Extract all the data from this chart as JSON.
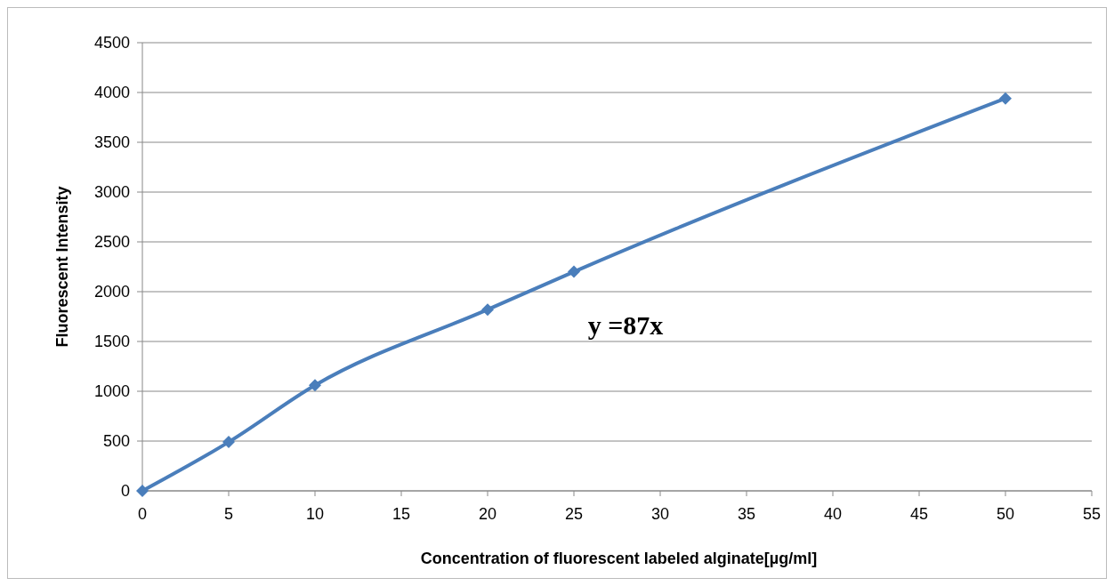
{
  "chart_data": {
    "type": "line",
    "xlabel": "Concentration of fluorescent labeled alginate[µg/ml]",
    "ylabel": "Fluorescent Intensity",
    "annotations": [
      "y =87x"
    ],
    "x": [
      0,
      5,
      10,
      20,
      25,
      50
    ],
    "series": [
      {
        "color": "#4a7ebb",
        "values": [
          0,
          490,
          1060,
          1820,
          2200,
          3940
        ]
      }
    ],
    "xlim": [
      0,
      55
    ],
    "xticks": [
      0,
      5,
      10,
      15,
      20,
      25,
      30,
      35,
      40,
      45,
      50,
      55
    ],
    "ylim": [
      0,
      4500
    ],
    "yticks": [
      0,
      500,
      1000,
      1500,
      2000,
      2500,
      3000,
      3500,
      4000,
      4500
    ],
    "grid": "y",
    "marker": "diamond",
    "line_style": "solid"
  }
}
